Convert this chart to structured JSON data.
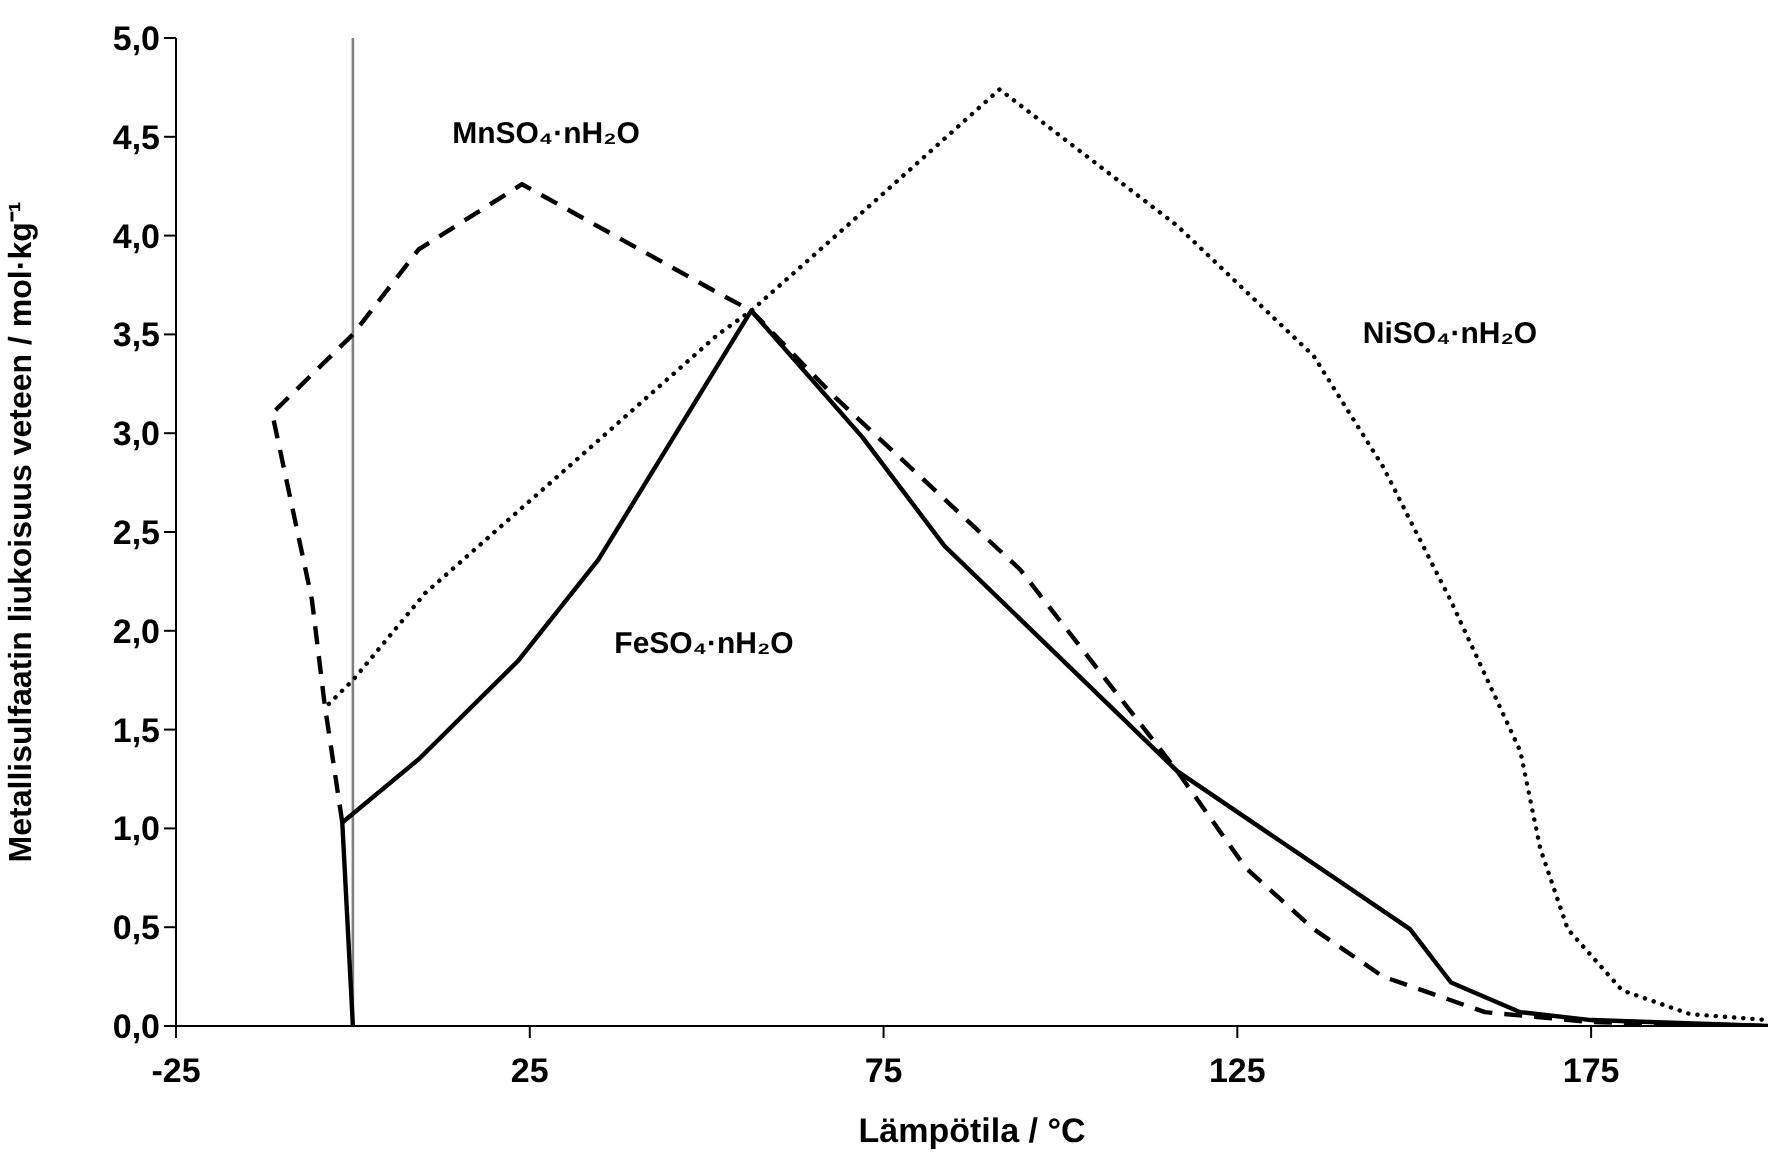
{
  "chart_data": {
    "type": "line",
    "xlabel": "Lämpötila / °C",
    "ylabel": "Metallisulfaatin liukoisuus veteen / mol·kg⁻¹",
    "xlim": [
      -25,
      200
    ],
    "xticks": [
      -25,
      25,
      75,
      125,
      175
    ],
    "ylim": [
      0,
      5
    ],
    "yticks": [
      {
        "value": 0,
        "label": "0,0"
      },
      {
        "value": 0.5,
        "label": "0,5"
      },
      {
        "value": 1,
        "label": "1,0"
      },
      {
        "value": 1.5,
        "label": "1,5"
      },
      {
        "value": 2,
        "label": "2,0"
      },
      {
        "value": 2.5,
        "label": "2,5"
      },
      {
        "value": 3,
        "label": "3,0"
      },
      {
        "value": 3.5,
        "label": "3,5"
      },
      {
        "value": 4,
        "label": "4,0"
      },
      {
        "value": 4.5,
        "label": "4,5"
      },
      {
        "value": 5,
        "label": "5,0"
      }
    ],
    "marker": "none",
    "ref_lines": [
      {
        "axis": "x",
        "value": 0,
        "color": "#808080"
      }
    ],
    "series": [
      {
        "name": "FeSO₄·nH₂O",
        "color": "#000000",
        "line_style": "solid",
        "x": [
          0,
          -1.5,
          9.3,
          23.4,
          34.7,
          56.3,
          72,
          83.6,
          116.5,
          149.4,
          155.2,
          165,
          175,
          200
        ],
        "values": [
          0,
          1.03,
          1.35,
          1.85,
          2.36,
          3.62,
          2.98,
          2.43,
          1.29,
          0.49,
          0.22,
          0.07,
          0.03,
          0
        ]
      },
      {
        "name": "MnSO₄·nH₂O",
        "color": "#000000",
        "line_style": "dashed",
        "x": [
          -1.5,
          -4,
          -5.8,
          -11.4,
          0,
          9.3,
          23.9,
          51.6,
          56.3,
          68.2,
          94.3,
          116.5,
          126.2,
          135.8,
          145.6,
          160,
          175,
          200
        ],
        "values": [
          1.03,
          1.63,
          2.16,
          3.1,
          3.5,
          3.93,
          4.26,
          3.71,
          3.62,
          3.18,
          2.31,
          1.29,
          0.8,
          0.49,
          0.25,
          0.07,
          0.02,
          0
        ]
      },
      {
        "name": "NiSO₄·nH₂O",
        "color": "#000000",
        "line_style": "dotted",
        "x": [
          -3.4,
          0,
          10.2,
          32.7,
          51.6,
          56.3,
          73,
          91.4,
          116.5,
          135.8,
          145.6,
          155.2,
          159.2,
          165,
          167.8,
          171.7,
          179.4,
          189,
          200
        ],
        "values": [
          1.63,
          1.75,
          2.19,
          2.9,
          3.5,
          3.62,
          4.15,
          4.74,
          4.05,
          3.39,
          2.83,
          2.15,
          1.84,
          1.39,
          0.9,
          0.49,
          0.18,
          0.06,
          0.03
        ]
      }
    ]
  }
}
